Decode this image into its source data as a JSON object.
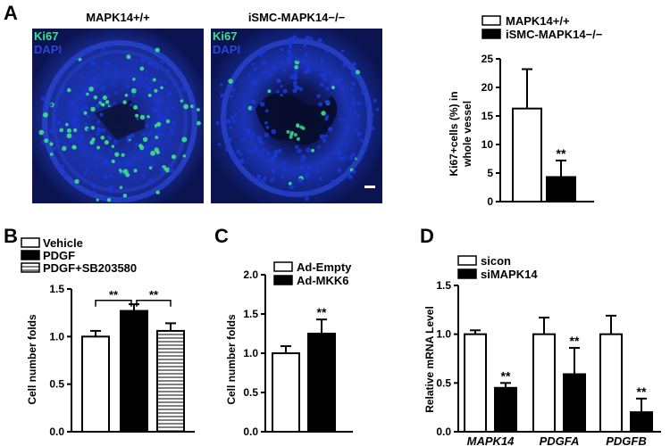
{
  "panels": {
    "A": {
      "letter": "A",
      "images": [
        {
          "title": "MAPK14+/+",
          "stain_green": "Ki67",
          "stain_blue": "DAPI"
        },
        {
          "title": "iSMC-MAPK14−/−",
          "stain_green": "Ki67",
          "stain_blue": "DAPI"
        }
      ]
    },
    "B": {
      "letter": "B"
    },
    "C": {
      "letter": "C"
    },
    "D": {
      "letter": "D"
    }
  },
  "colors": {
    "ki67": "#3ee08a",
    "dapi": "#1a37d0",
    "background": "#0a1650",
    "filled": "#000000",
    "open": "#ffffff"
  },
  "chart_data": [
    {
      "panel": "A",
      "type": "bar",
      "categories": [
        "MAPK14+/+",
        "iSMC-MAPK14−/−"
      ],
      "values": [
        16.3,
        4.3
      ],
      "errors": [
        6.9,
        2.9
      ],
      "fills": [
        "open",
        "filled"
      ],
      "significance": [
        "",
        "**"
      ],
      "ylabel_line1": "Ki67+cells (%) in",
      "ylabel_line2": "whole vessel",
      "ylim": [
        0,
        25
      ],
      "yticks": [
        "0",
        "5",
        "10",
        "15",
        "20",
        "25"
      ],
      "legend": [
        {
          "label": "MAPK14+/+",
          "fill": "open"
        },
        {
          "label": "iSMC-MAPK14−/−",
          "fill": "filled"
        }
      ],
      "legend_position": "top-right"
    },
    {
      "panel": "B",
      "type": "bar",
      "categories": [
        "Vehicle",
        "PDGF",
        "PDGF+SB203580"
      ],
      "values": [
        1.0,
        1.27,
        1.06
      ],
      "errors": [
        0.06,
        0.07,
        0.08
      ],
      "fills": [
        "open",
        "filled",
        "striped"
      ],
      "brackets": [
        {
          "from": 0,
          "to": 1,
          "label": "**"
        },
        {
          "from": 1,
          "to": 2,
          "label": "**"
        }
      ],
      "ylabel": "Cell number folds",
      "ylim": [
        0,
        1.5
      ],
      "yticks": [
        "0.0",
        "0.5",
        "1.0",
        "1.5"
      ],
      "legend": [
        {
          "label": "Vehicle",
          "fill": "open"
        },
        {
          "label": "PDGF",
          "fill": "filled"
        },
        {
          "label": "PDGF+SB203580",
          "fill": "striped"
        }
      ],
      "legend_position": "top"
    },
    {
      "panel": "C",
      "type": "bar",
      "categories": [
        "Ad-Empty",
        "Ad-MKK6"
      ],
      "values": [
        1.0,
        1.25
      ],
      "errors": [
        0.09,
        0.18
      ],
      "fills": [
        "open",
        "filled"
      ],
      "significance": [
        "",
        "**"
      ],
      "ylabel": "Cell number folds",
      "ylim": [
        0,
        2.0
      ],
      "yticks": [
        "0.0",
        "0.5",
        "1.0",
        "1.5",
        "2.0"
      ],
      "legend": [
        {
          "label": "Ad-Empty",
          "fill": "open"
        },
        {
          "label": "Ad-MKK6",
          "fill": "filled"
        }
      ],
      "legend_position": "top"
    },
    {
      "panel": "D",
      "type": "bar",
      "categories": [
        "MAPK14",
        "PDGFA",
        "PDGFB"
      ],
      "series": [
        {
          "name": "sicon",
          "values": [
            1.0,
            1.0,
            1.0
          ],
          "errors": [
            0.04,
            0.17,
            0.19
          ],
          "fill": "open"
        },
        {
          "name": "siMAPK14",
          "values": [
            0.45,
            0.59,
            0.2
          ],
          "errors": [
            0.05,
            0.27,
            0.14
          ],
          "fill": "filled"
        }
      ],
      "significance": [
        "**",
        "**",
        "**"
      ],
      "ylabel": "Relative mRNA Level",
      "ylim": [
        0,
        1.5
      ],
      "yticks": [
        "0.0",
        "0.5",
        "1.0",
        "1.5"
      ],
      "legend_position": "top-left"
    }
  ]
}
